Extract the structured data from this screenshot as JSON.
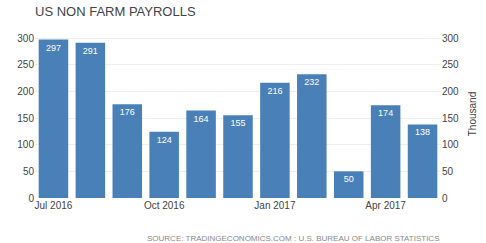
{
  "chart_data": {
    "type": "bar",
    "title": "US NON FARM PAYROLLS",
    "y2label": "Thousand",
    "annotations": [
      "SOURCE: TRADINGECONOMICS.COM : U.S. BUREAU OF LABOR STATISTICS"
    ],
    "categories": [
      "Jul 2016",
      null,
      null,
      "Oct 2016",
      null,
      null,
      "Jan 2017",
      null,
      null,
      "Apr 2017",
      null
    ],
    "values": [
      297,
      291,
      176,
      124,
      164,
      155,
      216,
      232,
      50,
      174,
      138
    ],
    "color": "#4a80b8",
    "ylim": [
      0,
      315
    ],
    "yticks": [
      0,
      50,
      100,
      150,
      200,
      250,
      300
    ],
    "y2lim": [
      0,
      315
    ],
    "y2ticks": [
      0,
      50,
      100,
      150,
      200,
      250,
      300
    ],
    "grid": true,
    "data_labels": true
  }
}
